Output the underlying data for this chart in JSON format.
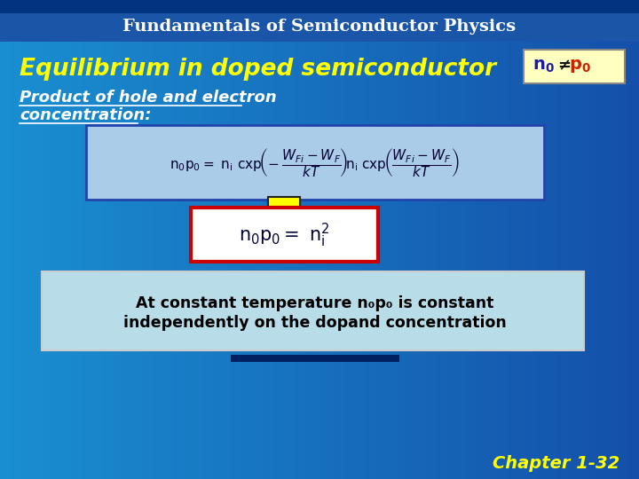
{
  "title": "Fundamentals of Semiconductor Physics",
  "title_color": "#FFFFFF",
  "main_title": "Equilibrium in doped semiconductor",
  "main_title_color": "#FFFF00",
  "subtitle_line1": "Product of hole and electron",
  "subtitle_line2": "concentration:",
  "subtitle_color": "#FFFFFF",
  "n0p0_box_bg": "#FFFFC0",
  "n0p0_box_border": "#888888",
  "bottom_text_line1": "At constant temperature n₀p₀ is constant",
  "bottom_text_line2": "independently on the dopand concentration",
  "bottom_text_color": "#000000",
  "chapter_text": "Chapter 1-32",
  "chapter_color": "#FFFF00",
  "arrow_color": "#FFFF00",
  "arrow_border": "#222222",
  "formula_box_bg": "#aacce8",
  "formula_box_border": "#2244aa",
  "result_box_bg": "#FFFFFF",
  "result_box_border": "#cc0000",
  "bottom_box_bg": "#b8dce8",
  "bottom_box_border": "#cccccc"
}
